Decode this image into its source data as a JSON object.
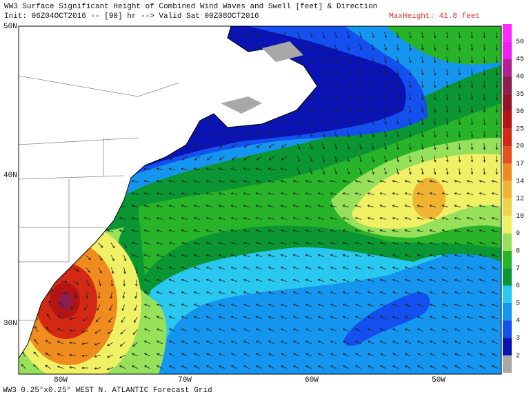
{
  "header": {
    "title": "WW3 Surface Significant Height of Combined Wind Waves and Swell [feet] & Direction",
    "init": "Init: 06Z04OCT2016 -- [90] hr --> Valid Sat 00Z08OCT2016",
    "max_height": "MaxHeight: 41.8 feet"
  },
  "map": {
    "lat_labels": [
      "50N",
      "40N",
      "30N"
    ],
    "lon_labels": [
      "80W",
      "70W",
      "60W",
      "50W"
    ]
  },
  "colorbar": {
    "labels": [
      "2",
      "3",
      "4",
      "5",
      "6",
      "7",
      "8",
      "9",
      "10",
      "12",
      "14",
      "17",
      "20",
      "25",
      "30",
      "35",
      "40",
      "45",
      "50"
    ],
    "colors": [
      "#a8a8a8",
      "#0a14b4",
      "#1450f0",
      "#1496f0",
      "#28c8f0",
      "#0a9632",
      "#28b428",
      "#96e05a",
      "#f0f064",
      "#f0d246",
      "#f0b432",
      "#f08c1e",
      "#e6501e",
      "#d22814",
      "#b41414",
      "#961428",
      "#8c1e50",
      "#b41e96",
      "#f01ef0",
      "#ff28ff"
    ]
  },
  "footer": "WW3 0.25°x0.25° WEST N. ATLANTIC Forecast Grid"
}
